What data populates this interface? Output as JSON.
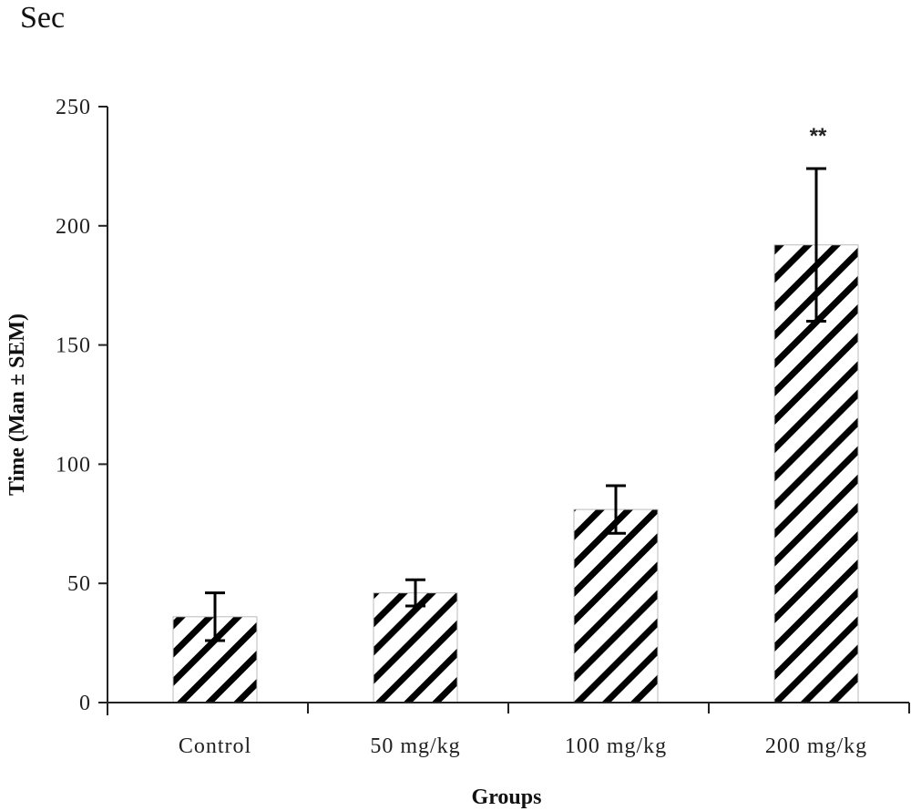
{
  "chart_data": {
    "type": "bar",
    "title": "",
    "unit_label": "Sec",
    "xlabel": "Groups",
    "ylabel": "Time (Man ± SEM)",
    "categories": [
      "Control",
      "50 mg/kg",
      "100 mg/kg",
      "200 mg/kg"
    ],
    "series": [
      {
        "name": "Time",
        "values": [
          36,
          46,
          81,
          192
        ],
        "error": [
          10,
          5.5,
          10,
          32
        ]
      }
    ],
    "annotations": [
      {
        "category": "200 mg/kg",
        "text": "**"
      }
    ],
    "ylim": [
      0,
      250
    ],
    "yticks": [
      0,
      50,
      100,
      150,
      200,
      250
    ],
    "grid": false,
    "legend": "none",
    "fill_pattern": "diagonal-hatch",
    "colors": {
      "bar_hatch": "#000000",
      "bar_bg": "#ffffff",
      "axis": "#222222"
    }
  }
}
